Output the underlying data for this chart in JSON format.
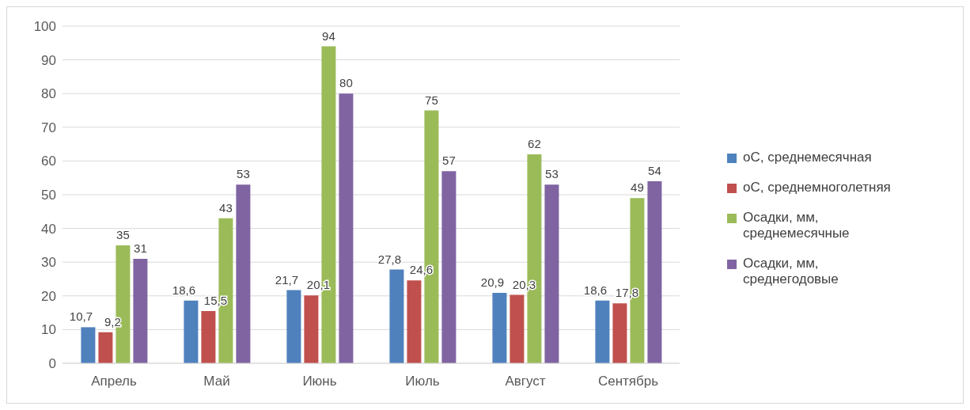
{
  "chart_data": {
    "type": "bar",
    "categories": [
      "Апрель",
      "Май",
      "Июнь",
      "Июль",
      "Август",
      "Сентябрь"
    ],
    "series": [
      {
        "name": "oC, среднемесячная",
        "color": "#4f81bd",
        "values": [
          10.7,
          18.6,
          21.7,
          27.8,
          20.9,
          18.6
        ],
        "value_labels": [
          "10,7",
          "18,6",
          "21,7",
          "27,8",
          "20,9",
          "18,6"
        ]
      },
      {
        "name": "oC, среднемноголетняя",
        "color": "#c0504d",
        "values": [
          9.2,
          15.5,
          20.1,
          24.6,
          20.3,
          17.8
        ],
        "value_labels": [
          "9,2",
          "15,5",
          "20,1",
          "24,6",
          "20,3",
          "17,8"
        ]
      },
      {
        "name": "Осадки, мм, среднемесячные",
        "color": "#9bbb59",
        "values": [
          35,
          43,
          94,
          75,
          62,
          49
        ],
        "value_labels": [
          "35",
          "43",
          "94",
          "75",
          "62",
          "49"
        ]
      },
      {
        "name": "Осадки, мм, среднегодовые",
        "color": "#8064a2",
        "values": [
          31,
          53,
          80,
          57,
          53,
          54
        ],
        "value_labels": [
          "31",
          "53",
          "80",
          "57",
          "53",
          "54"
        ]
      }
    ],
    "ylim": [
      0,
      100
    ],
    "yticks": [
      0,
      10,
      20,
      30,
      40,
      50,
      60,
      70,
      80,
      90,
      100
    ],
    "grid": "y",
    "legend": "right"
  }
}
